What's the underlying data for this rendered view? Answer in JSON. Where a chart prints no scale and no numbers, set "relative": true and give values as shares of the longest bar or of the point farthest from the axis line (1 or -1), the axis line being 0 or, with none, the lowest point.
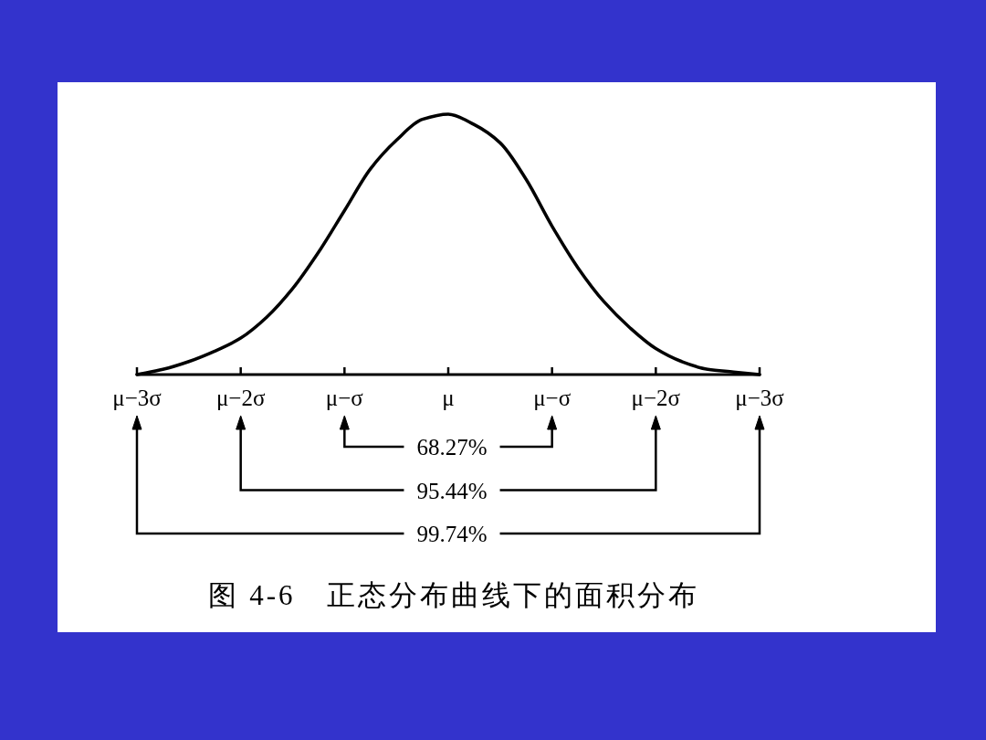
{
  "chart_data": {
    "type": "line",
    "relative": true,
    "color": "#000000",
    "title": "图 4-6　正态分布曲线下的面积分布",
    "categories": [
      "μ−3σ",
      null,
      null,
      null,
      "μ−2σ",
      null,
      null,
      null,
      "μ−σ",
      null,
      null,
      null,
      "μ",
      null,
      null,
      null,
      "μ−σ",
      null,
      null,
      null,
      "μ−2σ",
      null,
      null,
      null,
      "μ−3σ"
    ],
    "values": [
      0,
      0.02,
      0.05,
      0.09,
      0.14,
      0.22,
      0.33,
      0.47,
      0.63,
      0.79,
      0.9,
      0.98,
      1.0,
      0.96,
      0.89,
      0.75,
      0.57,
      0.41,
      0.28,
      0.18,
      0.1,
      0.05,
      0.02,
      0.01,
      0
    ],
    "annotations": [
      "68.27%",
      "95.44%",
      "99.74%"
    ]
  }
}
